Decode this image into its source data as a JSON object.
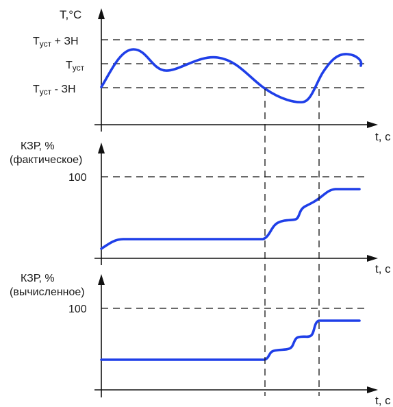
{
  "panels": {
    "temperature": {
      "y_label": "T,°C",
      "x_label": "t, c",
      "levels": {
        "upper": {
          "main": "T",
          "sub": "уст",
          "rest": " + ЗН"
        },
        "setpoint": {
          "main": "T",
          "sub": "уст",
          "rest": ""
        },
        "lower": {
          "main": "T",
          "sub": "уст",
          "rest": " - ЗН"
        }
      }
    },
    "actual": {
      "y_label_line1": "КЗР, %",
      "y_label_line2": "(фактическое)",
      "tick_100": "100",
      "x_label": "t, c"
    },
    "computed": {
      "y_label_line1": "КЗР, %",
      "y_label_line2": "(вычисленное)",
      "tick_100": "100",
      "x_label": "t, c"
    }
  },
  "colors": {
    "curve": "#1f3fe8",
    "axis": "#111111"
  }
}
